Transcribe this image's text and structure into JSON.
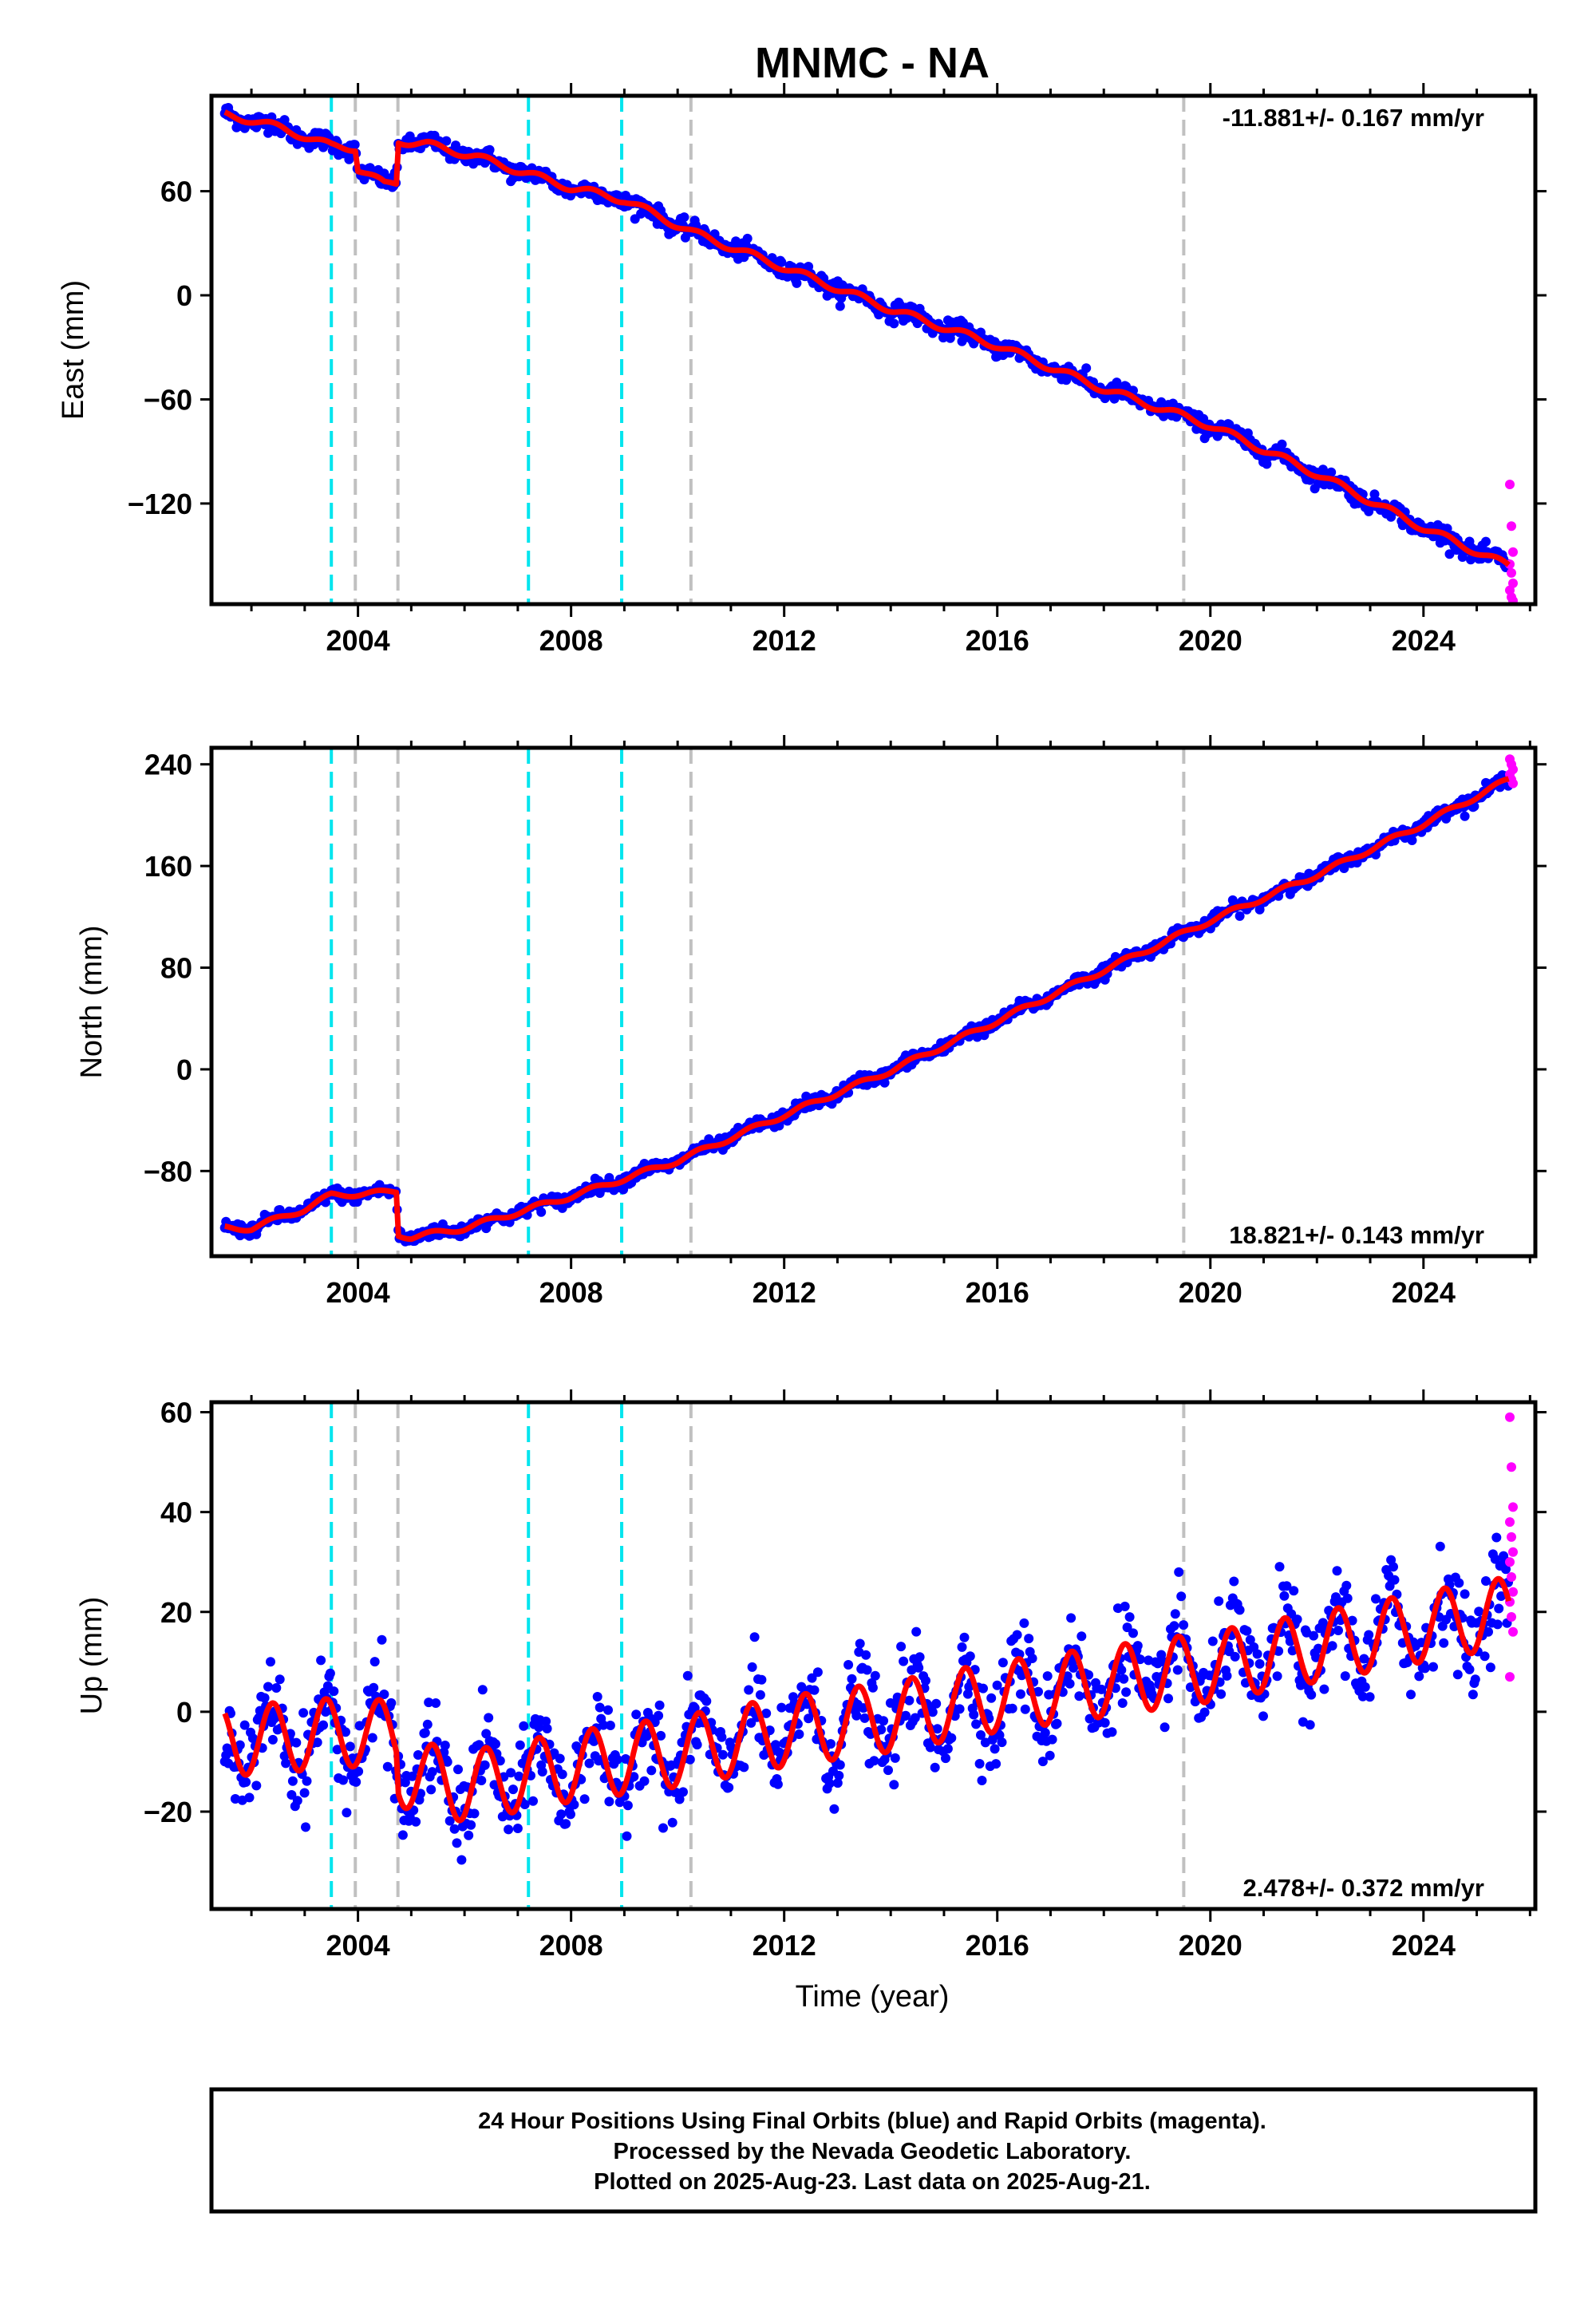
{
  "title": "MNMC - NA",
  "xlabel": "Time (year)",
  "chart_data": [
    {
      "type": "scatter",
      "ylabel": "East (mm)",
      "rate": "-11.881+/- 0.167 mm/yr",
      "xlim": [
        2001.25,
        2026.1
      ],
      "ylim": [
        -178,
        115
      ],
      "xticks": [
        2004,
        2008,
        2012,
        2016,
        2020,
        2024
      ],
      "yticks": [
        -120,
        -60,
        0,
        60
      ],
      "data_range": [
        2001.5,
        2025.6
      ],
      "knots": [
        [
          2001.5,
          104
        ],
        [
          2002.0,
          101
        ],
        [
          2002.6,
          96
        ],
        [
          2003.5,
          86
        ],
        [
          2003.95,
          85
        ],
        [
          2004.0,
          73
        ],
        [
          2004.5,
          64
        ],
        [
          2004.72,
          65
        ],
        [
          2004.76,
          89
        ],
        [
          2005.3,
          87
        ],
        [
          2006.2,
          80
        ],
        [
          2007.0,
          72
        ],
        [
          2008.0,
          62
        ],
        [
          2009.0,
          55
        ],
        [
          2010.3,
          36
        ],
        [
          2012.0,
          16
        ],
        [
          2014.0,
          -8
        ],
        [
          2016.0,
          -29
        ],
        [
          2018.0,
          -54
        ],
        [
          2020.0,
          -75
        ],
        [
          2022.0,
          -103
        ],
        [
          2024.0,
          -134
        ],
        [
          2025.6,
          -156
        ]
      ],
      "seasonal_amp": 2,
      "scatter_noise": 2.5,
      "rapid_points": [
        -109,
        -133,
        -148,
        -155,
        -160,
        -166,
        -170,
        -174,
        -176
      ]
    },
    {
      "type": "scatter",
      "ylabel": "North (mm)",
      "rate": "18.821+/- 0.143 mm/yr",
      "xlim": [
        2001.25,
        2026.1
      ],
      "ylim": [
        -147,
        253
      ],
      "xticks": [
        2004,
        2008,
        2012,
        2016,
        2020,
        2024
      ],
      "yticks": [
        -80,
        0,
        80,
        160,
        240
      ],
      "data_range": [
        2001.5,
        2025.6
      ],
      "knots": [
        [
          2001.5,
          -125
        ],
        [
          2002.0,
          -125
        ],
        [
          2003.0,
          -110
        ],
        [
          2003.5,
          -99
        ],
        [
          2004.0,
          -98
        ],
        [
          2004.5,
          -97
        ],
        [
          2004.72,
          -96
        ],
        [
          2004.76,
          -130
        ],
        [
          2005.0,
          -132
        ],
        [
          2006.0,
          -125
        ],
        [
          2008.0,
          -100
        ],
        [
          2010.0,
          -72
        ],
        [
          2012.0,
          -36
        ],
        [
          2014.0,
          -1
        ],
        [
          2016.0,
          38
        ],
        [
          2018.0,
          78
        ],
        [
          2020.0,
          117
        ],
        [
          2022.0,
          153
        ],
        [
          2024.0,
          193
        ],
        [
          2025.6,
          228
        ]
      ],
      "seasonal_amp": 2,
      "scatter_noise": 2.5,
      "rapid_points": [
        244,
        240,
        236,
        232,
        228,
        225
      ]
    },
    {
      "type": "scatter",
      "ylabel": "Up (mm)",
      "rate": "2.478+/- 0.372 mm/yr",
      "xlim": [
        2001.25,
        2026.1
      ],
      "ylim": [
        -39.5,
        62
      ],
      "xticks": [
        2004,
        2008,
        2012,
        2016,
        2020,
        2024
      ],
      "yticks": [
        -20,
        0,
        20,
        40,
        60
      ],
      "data_range": [
        2001.5,
        2025.6
      ],
      "knots": [
        [
          2001.5,
          -6
        ],
        [
          2003.9,
          -4
        ],
        [
          2004.72,
          -5
        ],
        [
          2004.76,
          -12
        ],
        [
          2006.0,
          -15
        ],
        [
          2008.0,
          -11
        ],
        [
          2010.0,
          -8
        ],
        [
          2012.0,
          -4
        ],
        [
          2014.0,
          -1
        ],
        [
          2016.0,
          3
        ],
        [
          2018.0,
          6
        ],
        [
          2020.0,
          9
        ],
        [
          2022.0,
          13
        ],
        [
          2024.0,
          17
        ],
        [
          2025.6,
          20
        ]
      ],
      "seasonal_amp": 7,
      "scatter_noise": 4.5,
      "rapid_points": [
        59,
        49,
        41,
        38,
        35,
        32,
        30,
        27,
        24,
        22,
        19,
        16,
        7
      ]
    }
  ],
  "events": {
    "cyan": [
      2003.5,
      2007.2,
      2008.95
    ],
    "gray": [
      2003.95,
      2004.75,
      2010.25,
      2019.5
    ]
  },
  "colors": {
    "final_orbits": "#0000ff",
    "rapid_orbits": "#ff00ff",
    "model": "#ff0000",
    "event_cyan": "#00e5ee",
    "event_gray": "#c0c0c0"
  },
  "footer": {
    "line1": "24 Hour Positions Using Final Orbits (blue) and Rapid Orbits (magenta).",
    "line2": "Processed by the Nevada Geodetic Laboratory.",
    "line3": "Plotted on 2025-Aug-23. Last data on 2025-Aug-21."
  }
}
